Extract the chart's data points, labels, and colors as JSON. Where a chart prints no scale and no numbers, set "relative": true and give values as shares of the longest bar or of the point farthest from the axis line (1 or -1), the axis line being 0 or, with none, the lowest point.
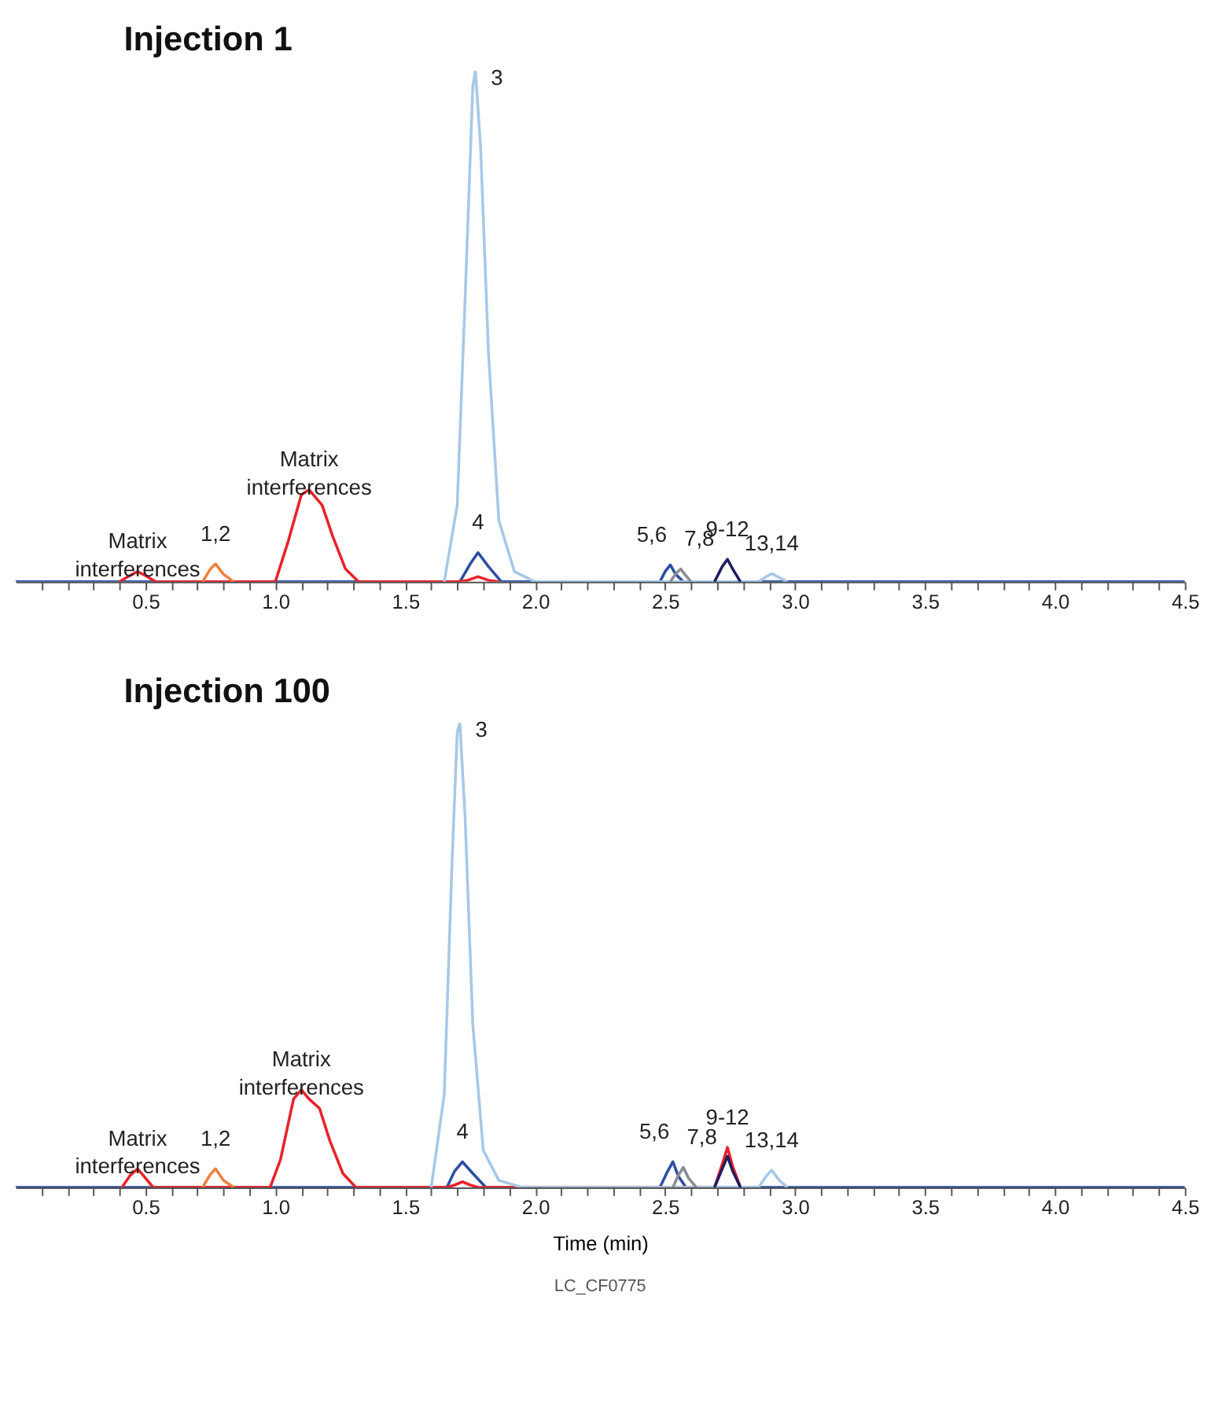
{
  "chart_data": [
    {
      "type": "line",
      "title": "Injection 1",
      "relative": true,
      "xlim": [
        0,
        4.5
      ],
      "xticks": [
        {
          "value": 0.1,
          "label": null
        },
        {
          "value": 0.2,
          "label": null
        },
        {
          "value": 0.3,
          "label": null
        },
        {
          "value": 0.4,
          "label": null
        },
        0.5,
        {
          "value": 0.6,
          "label": null
        },
        {
          "value": 0.7,
          "label": null
        },
        {
          "value": 0.8,
          "label": null
        },
        {
          "value": 0.9,
          "label": null
        },
        {
          "value": 1,
          "label": "1.0"
        },
        {
          "value": 1.1,
          "label": null
        },
        {
          "value": 1.2,
          "label": null
        },
        {
          "value": 1.3,
          "label": null
        },
        {
          "value": 1.4,
          "label": null
        },
        1.5,
        {
          "value": 1.6,
          "label": null
        },
        {
          "value": 1.7,
          "label": null
        },
        {
          "value": 1.8,
          "label": null
        },
        {
          "value": 1.9,
          "label": null
        },
        {
          "value": 2,
          "label": "2.0"
        },
        {
          "value": 2.1,
          "label": null
        },
        {
          "value": 2.2,
          "label": null
        },
        {
          "value": 2.3,
          "label": null
        },
        {
          "value": 2.4,
          "label": null
        },
        2.5,
        {
          "value": 2.6,
          "label": null
        },
        {
          "value": 2.7,
          "label": null
        },
        {
          "value": 2.8,
          "label": null
        },
        {
          "value": 2.9,
          "label": null
        },
        {
          "value": 3,
          "label": "3.0"
        },
        {
          "value": 3.1,
          "label": null
        },
        {
          "value": 3.2,
          "label": null
        },
        {
          "value": 3.3,
          "label": null
        },
        {
          "value": 3.4,
          "label": null
        },
        3.5,
        {
          "value": 3.6,
          "label": null
        },
        {
          "value": 3.7,
          "label": null
        },
        {
          "value": 3.8,
          "label": null
        },
        {
          "value": 3.9,
          "label": null
        },
        {
          "value": 4,
          "label": "4.0"
        },
        {
          "value": 4.1,
          "label": null
        },
        {
          "value": 4.2,
          "label": null
        },
        {
          "value": 4.3,
          "label": null
        },
        {
          "value": 4.4,
          "label": null
        },
        4.5
      ],
      "line_style": "solid",
      "series": [
        {
          "color": "#2b4ea2",
          "x": [
            0,
            1.71,
            1.75,
            1.78,
            1.82,
            1.87,
            2.48,
            2.5,
            2.52,
            2.54,
            2.57,
            4.5
          ],
          "values": [
            0,
            0,
            0.035,
            0.057,
            0.03,
            0,
            0,
            0.02,
            0.033,
            0.015,
            0,
            0
          ]
        },
        {
          "color": "#e8222a",
          "x": [
            0.4,
            0.44,
            0.47,
            0.5,
            0.54,
            1.0,
            1.05,
            1.1,
            1.13,
            1.18,
            1.22,
            1.27,
            1.32,
            1.7,
            1.74,
            1.78,
            1.82,
            1.86
          ],
          "values": [
            0,
            0.012,
            0.02,
            0.012,
            0,
            0,
            0.08,
            0.17,
            0.18,
            0.15,
            0.09,
            0.025,
            0,
            0,
            0.003,
            0.01,
            0.003,
            0
          ]
        },
        {
          "color": "#f07f3c",
          "x": [
            0.72,
            0.75,
            0.77,
            0.8,
            0.84
          ],
          "values": [
            0,
            0.025,
            0.035,
            0.015,
            0
          ]
        },
        {
          "color": "#a7c8e8",
          "x": [
            1.65,
            1.7,
            1.73,
            1.76,
            1.77,
            1.79,
            1.82,
            1.86,
            1.92,
            2.0,
            2.86,
            2.89,
            2.91,
            2.94,
            2.97
          ],
          "values": [
            0,
            0.15,
            0.55,
            0.97,
            1.0,
            0.85,
            0.45,
            0.12,
            0.02,
            0,
            0,
            0.01,
            0.016,
            0.008,
            0
          ]
        },
        {
          "color": "#8c8c94",
          "x": [
            2.52,
            2.54,
            2.56,
            2.58,
            2.6
          ],
          "values": [
            0,
            0.015,
            0.025,
            0.012,
            0
          ]
        },
        {
          "color": "#1f1d5e",
          "x": [
            2.69,
            2.72,
            2.74,
            2.76,
            2.79
          ],
          "values": [
            0,
            0.03,
            0.044,
            0.025,
            0
          ]
        }
      ],
      "annotations": [
        {
          "text": "Matrix interferences",
          "x": 0.47,
          "y": 0.02
        },
        {
          "text": "1,2",
          "x": 0.77,
          "y": 0.035
        },
        {
          "text": "Matrix interferences",
          "x": 1.13,
          "y": 0.18
        },
        {
          "text": "3",
          "x": 1.77,
          "y": 1.0
        },
        {
          "text": "4",
          "x": 1.78,
          "y": 0.057
        },
        {
          "text": "5,6",
          "x": 2.52,
          "y": 0.033
        },
        {
          "text": "7,8",
          "x": 2.56,
          "y": 0.025
        },
        {
          "text": "9-12",
          "x": 2.74,
          "y": 0.044
        },
        {
          "text": "13,14",
          "x": 2.91,
          "y": 0.016
        }
      ]
    },
    {
      "type": "line",
      "title": "Injection 100",
      "relative": true,
      "xlim": [
        0,
        4.5
      ],
      "xlabel": "Time (min)",
      "xticks": [
        {
          "value": 0.1,
          "label": null
        },
        {
          "value": 0.2,
          "label": null
        },
        {
          "value": 0.3,
          "label": null
        },
        {
          "value": 0.4,
          "label": null
        },
        0.5,
        {
          "value": 0.6,
          "label": null
        },
        {
          "value": 0.7,
          "label": null
        },
        {
          "value": 0.8,
          "label": null
        },
        {
          "value": 0.9,
          "label": null
        },
        {
          "value": 1,
          "label": "1.0"
        },
        {
          "value": 1.1,
          "label": null
        },
        {
          "value": 1.2,
          "label": null
        },
        {
          "value": 1.3,
          "label": null
        },
        {
          "value": 1.4,
          "label": null
        },
        1.5,
        {
          "value": 1.6,
          "label": null
        },
        {
          "value": 1.7,
          "label": null
        },
        {
          "value": 1.8,
          "label": null
        },
        {
          "value": 1.9,
          "label": null
        },
        {
          "value": 2,
          "label": "2.0"
        },
        {
          "value": 2.1,
          "label": null
        },
        {
          "value": 2.2,
          "label": null
        },
        {
          "value": 2.3,
          "label": null
        },
        {
          "value": 2.4,
          "label": null
        },
        2.5,
        {
          "value": 2.6,
          "label": null
        },
        {
          "value": 2.7,
          "label": null
        },
        {
          "value": 2.8,
          "label": null
        },
        {
          "value": 2.9,
          "label": null
        },
        {
          "value": 3,
          "label": "3.0"
        },
        {
          "value": 3.1,
          "label": null
        },
        {
          "value": 3.2,
          "label": null
        },
        {
          "value": 3.3,
          "label": null
        },
        {
          "value": 3.4,
          "label": null
        },
        3.5,
        {
          "value": 3.6,
          "label": null
        },
        {
          "value": 3.7,
          "label": null
        },
        {
          "value": 3.8,
          "label": null
        },
        {
          "value": 3.9,
          "label": null
        },
        {
          "value": 4,
          "label": "4.0"
        },
        {
          "value": 4.1,
          "label": null
        },
        {
          "value": 4.2,
          "label": null
        },
        {
          "value": 4.3,
          "label": null
        },
        {
          "value": 4.4,
          "label": null
        },
        4.5
      ],
      "line_style": "solid",
      "series": [
        {
          "color": "#2b4ea2",
          "x": [
            0,
            1.66,
            1.69,
            1.72,
            1.76,
            1.81,
            2.48,
            2.51,
            2.53,
            2.55,
            2.58,
            4.5
          ],
          "values": [
            0,
            0,
            0.035,
            0.055,
            0.03,
            0,
            0,
            0.035,
            0.055,
            0.025,
            0,
            0
          ]
        },
        {
          "color": "#e8222a",
          "x": [
            0.41,
            0.44,
            0.47,
            0.5,
            0.53,
            0.98,
            1.02,
            1.07,
            1.1,
            1.13,
            1.17,
            1.21,
            1.26,
            1.31,
            1.66,
            1.69,
            1.72,
            1.75,
            1.78,
            2.69,
            2.72,
            2.74,
            2.76,
            2.79
          ],
          "values": [
            0,
            0.025,
            0.04,
            0.02,
            0,
            0,
            0.06,
            0.19,
            0.21,
            0.19,
            0.17,
            0.1,
            0.03,
            0,
            0,
            0.005,
            0.012,
            0.005,
            0,
            0,
            0.05,
            0.086,
            0.045,
            0
          ]
        },
        {
          "color": "#f07f3c",
          "x": [
            0.72,
            0.75,
            0.77,
            0.8,
            0.84
          ],
          "values": [
            0,
            0.028,
            0.04,
            0.015,
            0
          ]
        },
        {
          "color": "#a7c8e8",
          "x": [
            1.6,
            1.65,
            1.68,
            1.7,
            1.71,
            1.73,
            1.76,
            1.8,
            1.86,
            1.95,
            2.86,
            2.89,
            2.91,
            2.94,
            2.97
          ],
          "values": [
            0,
            0.2,
            0.7,
            0.98,
            1.0,
            0.8,
            0.35,
            0.08,
            0.015,
            0,
            0,
            0.025,
            0.037,
            0.015,
            0
          ]
        },
        {
          "color": "#8c8c94",
          "x": [
            2.53,
            2.55,
            2.57,
            2.59,
            2.62
          ],
          "values": [
            0,
            0.025,
            0.043,
            0.02,
            0
          ]
        },
        {
          "color": "#1f1d5e",
          "x": [
            2.69,
            2.72,
            2.74,
            2.76,
            2.79
          ],
          "values": [
            0,
            0.04,
            0.067,
            0.035,
            0
          ]
        }
      ],
      "annotations": [
        {
          "text": "Matrix interferences",
          "x": 0.47,
          "y": 0.04
        },
        {
          "text": "1,2",
          "x": 0.77,
          "y": 0.04
        },
        {
          "text": "Matrix interferences",
          "x": 1.1,
          "y": 0.21
        },
        {
          "text": "3",
          "x": 1.71,
          "y": 1.0
        },
        {
          "text": "4",
          "x": 1.72,
          "y": 0.055
        },
        {
          "text": "5,6",
          "x": 2.53,
          "y": 0.055
        },
        {
          "text": "7,8",
          "x": 2.57,
          "y": 0.043
        },
        {
          "text": "9-12",
          "x": 2.74,
          "y": 0.086
        },
        {
          "text": "13,14",
          "x": 2.91,
          "y": 0.037
        },
        "LC_CF0775"
      ]
    }
  ]
}
